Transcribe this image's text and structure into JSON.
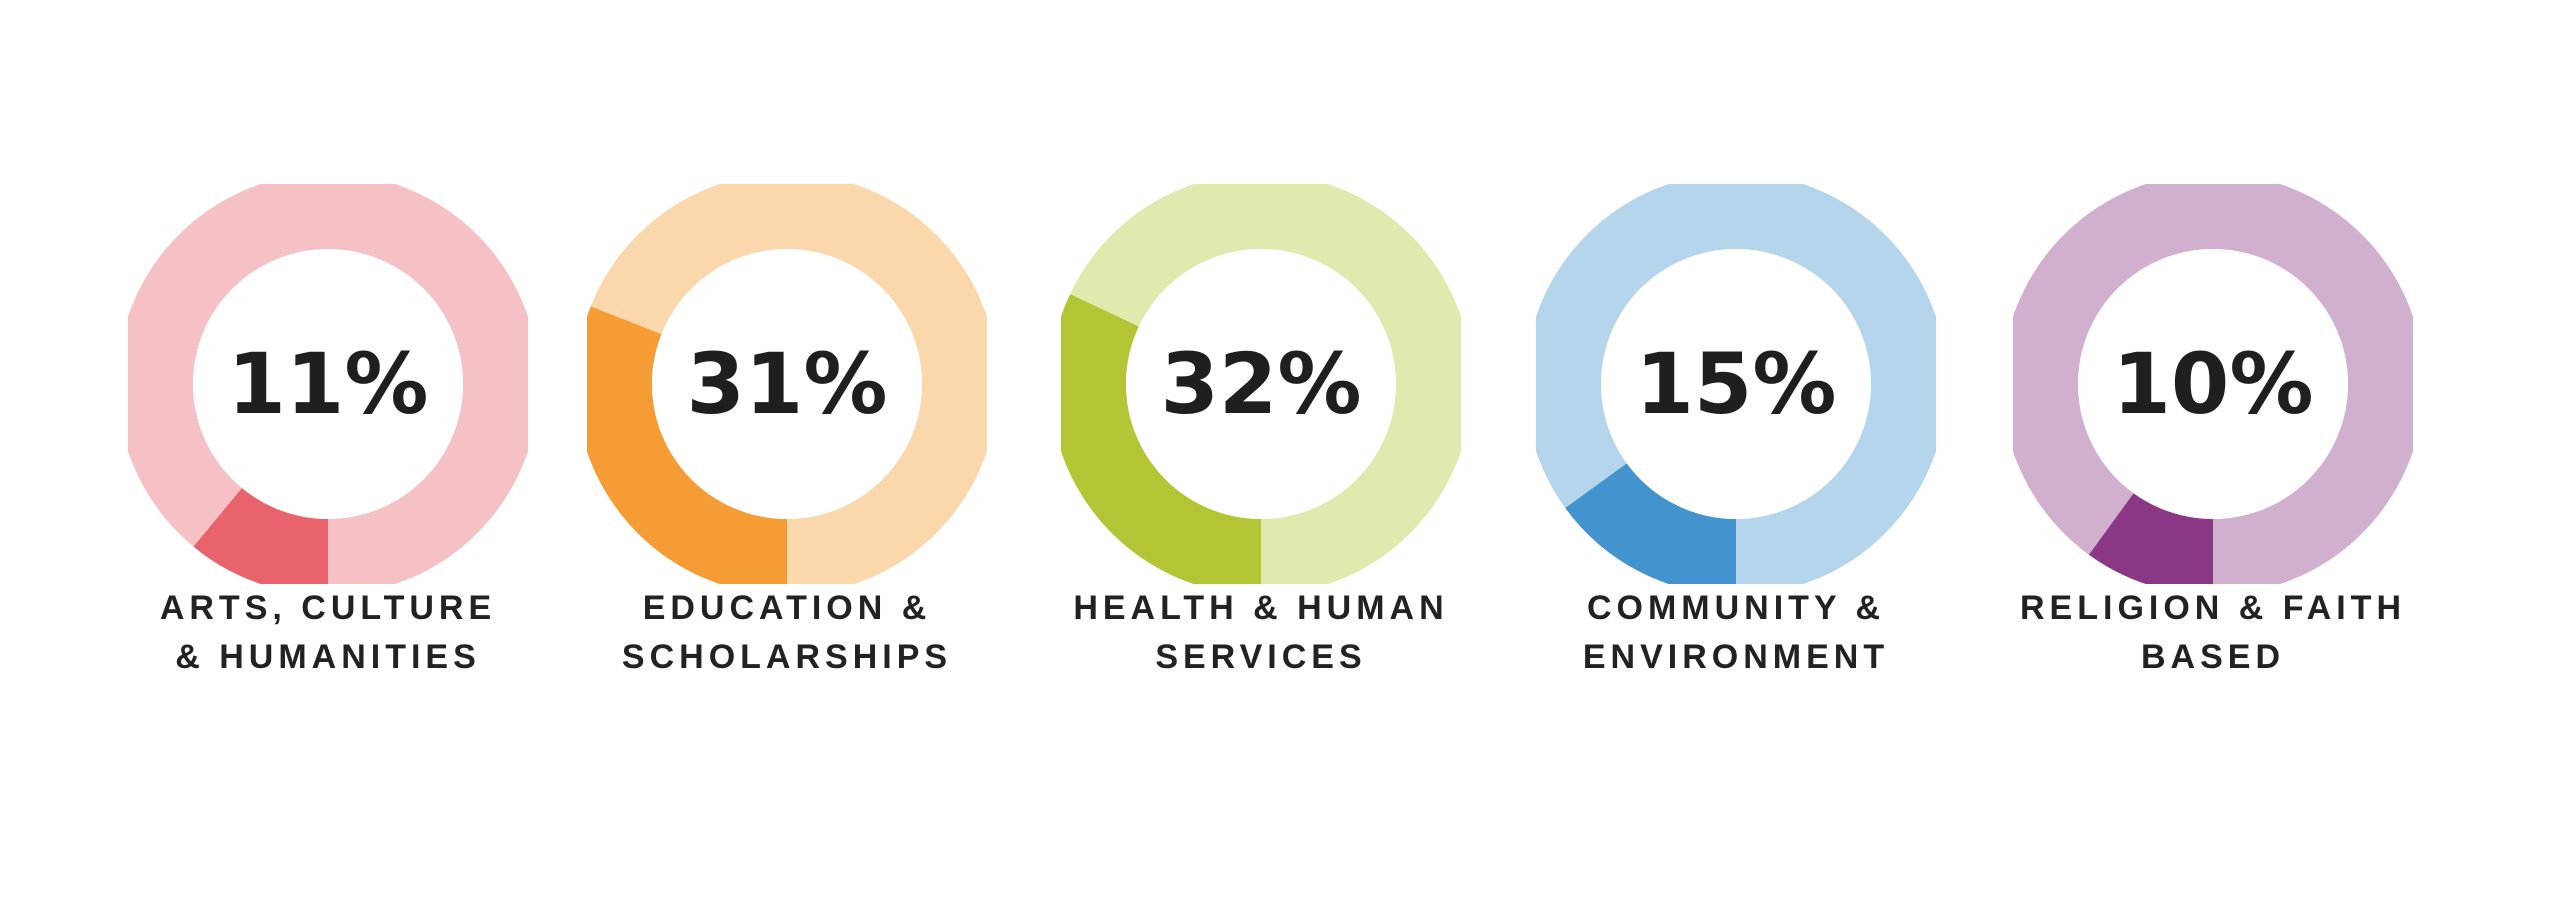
{
  "chart_data": {
    "type": "pie",
    "title": "",
    "series": [
      {
        "name": "ARTS, CULTURE & HUMANITIES",
        "label_lines": [
          "ARTS, CULTURE",
          "& HUMANITIES"
        ],
        "value": 11,
        "value_label": "11%",
        "color": "#E8636B",
        "track_color": "#F6C1C5"
      },
      {
        "name": "EDUCATION & SCHOLARSHIPS",
        "label_lines": [
          "EDUCATION &",
          "SCHOLARSHIPS"
        ],
        "value": 31,
        "value_label": "31%",
        "color": "#F59C34",
        "track_color": "#FAD8AC"
      },
      {
        "name": "HEALTH & HUMAN SERVICES",
        "label_lines": [
          "HEALTH & HUMAN",
          "SERVICES"
        ],
        "value": 32,
        "value_label": "32%",
        "color": "#B3C535",
        "track_color": "#DFEAAF"
      },
      {
        "name": "COMMUNITY & ENVIRONMENT",
        "label_lines": [
          "COMMUNITY &",
          "ENVIRONMENT"
        ],
        "value": 15,
        "value_label": "15%",
        "color": "#4393CF",
        "track_color": "#B5D5EC"
      },
      {
        "name": "RELIGION & FAITH BASED",
        "label_lines": [
          "RELIGION & FAITH",
          "BASED"
        ],
        "value": 10,
        "value_label": "10%",
        "color": "#8A3886",
        "track_color": "#D1AFCF"
      }
    ]
  }
}
